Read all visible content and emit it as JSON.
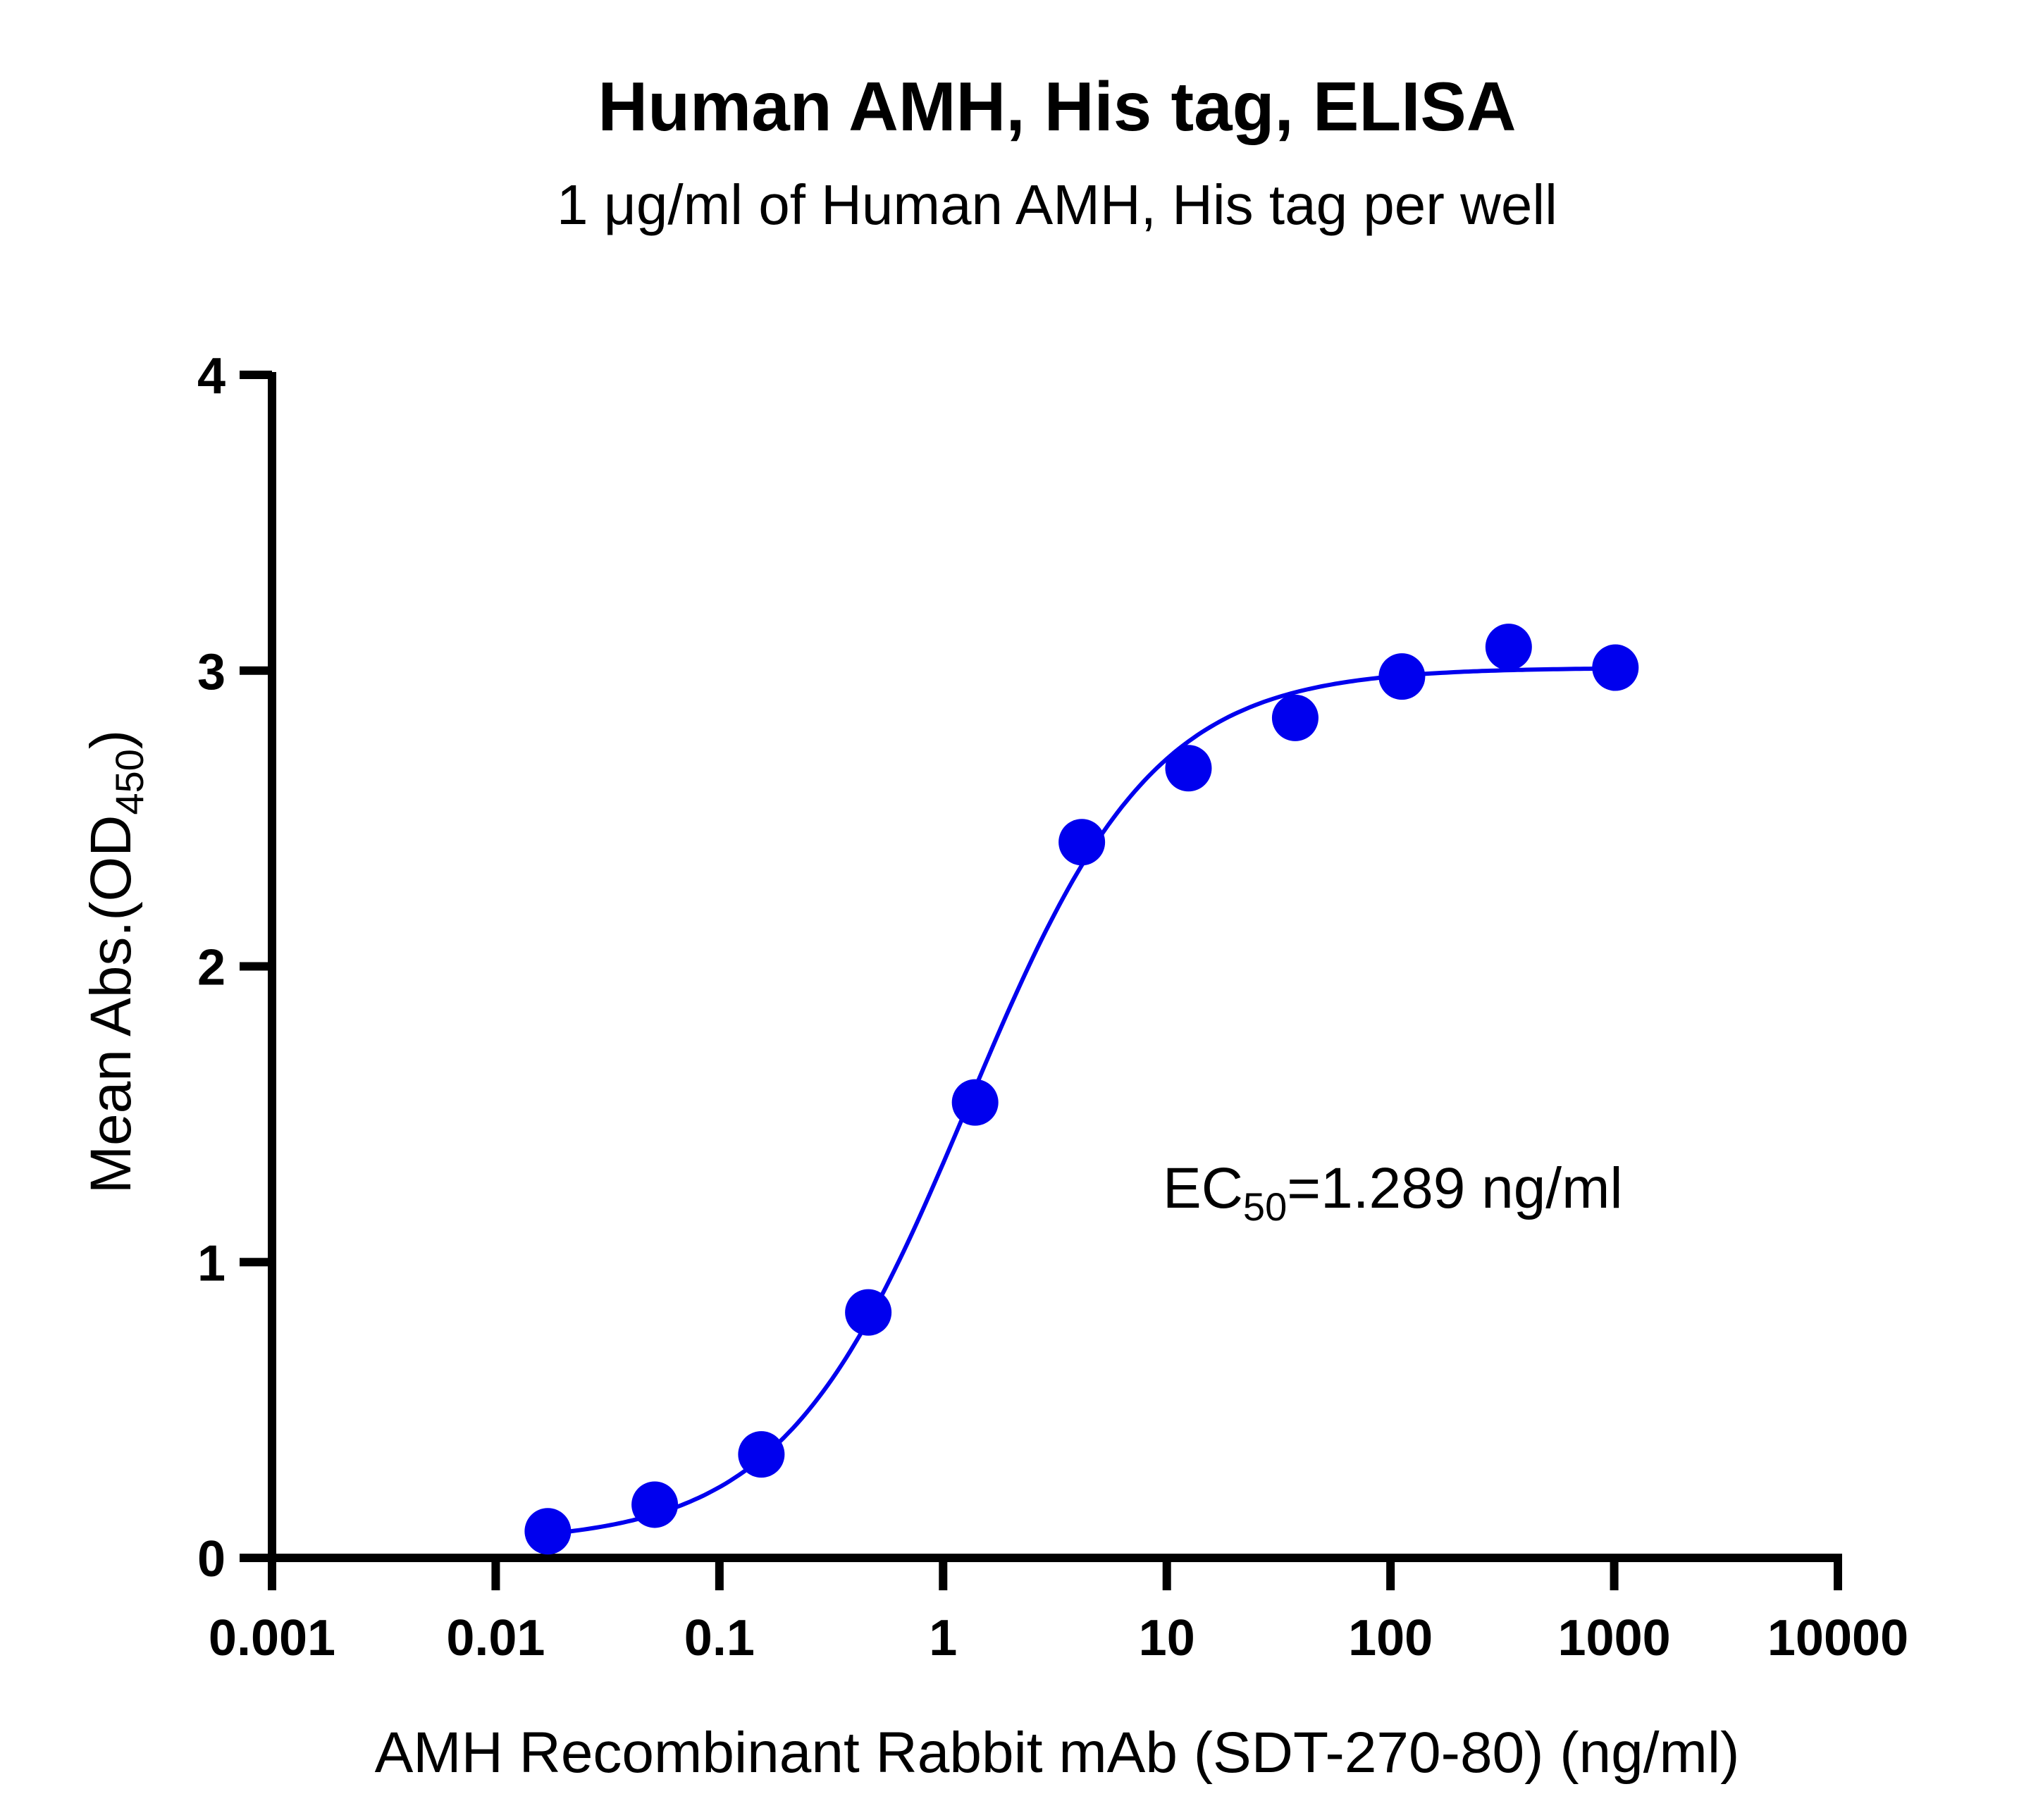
{
  "chart_data": {
    "type": "scatter",
    "title": "Human AMH, His tag, ELISA",
    "subtitle": "1 μg/ml of Human AMH, His tag per well",
    "xlabel": "AMH Recombinant Rabbit mAb (SDT-270-80) (ng/ml)",
    "ylabel": {
      "main": "Mean Abs.(OD",
      "sub": "450",
      "end": ")"
    },
    "xscale": "log",
    "xlim": [
      0.001,
      10000
    ],
    "ylim": [
      0,
      4
    ],
    "xticks": [
      0.001,
      0.01,
      0.1,
      1,
      10,
      100,
      1000,
      10000
    ],
    "xtick_labels": [
      "0.001",
      "0.01",
      "0.1",
      "1",
      "10",
      "100",
      "1000",
      "10000"
    ],
    "yticks": [
      0,
      1,
      2,
      3,
      4
    ],
    "ytick_labels": [
      "0",
      "1",
      "2",
      "3",
      "4"
    ],
    "grid": false,
    "series": [
      {
        "color": "#0000ee",
        "x": [
          0.0171,
          0.0514,
          0.154,
          0.463,
          1.39,
          4.17,
          12.5,
          37.5,
          112.5,
          337.5,
          1012.5
        ],
        "y": [
          0.09,
          0.18,
          0.35,
          0.83,
          1.54,
          2.42,
          2.67,
          2.84,
          2.98,
          3.08,
          3.01
        ]
      }
    ],
    "fit_curve": {
      "color": "#0000ee",
      "model": "4PL",
      "bottom": 0.05,
      "top": 3.01,
      "ec50": 1.289,
      "hill": 1.05
    },
    "annotation": {
      "main": "EC",
      "sub": "50",
      "end": "=1.289 ng/ml"
    }
  }
}
